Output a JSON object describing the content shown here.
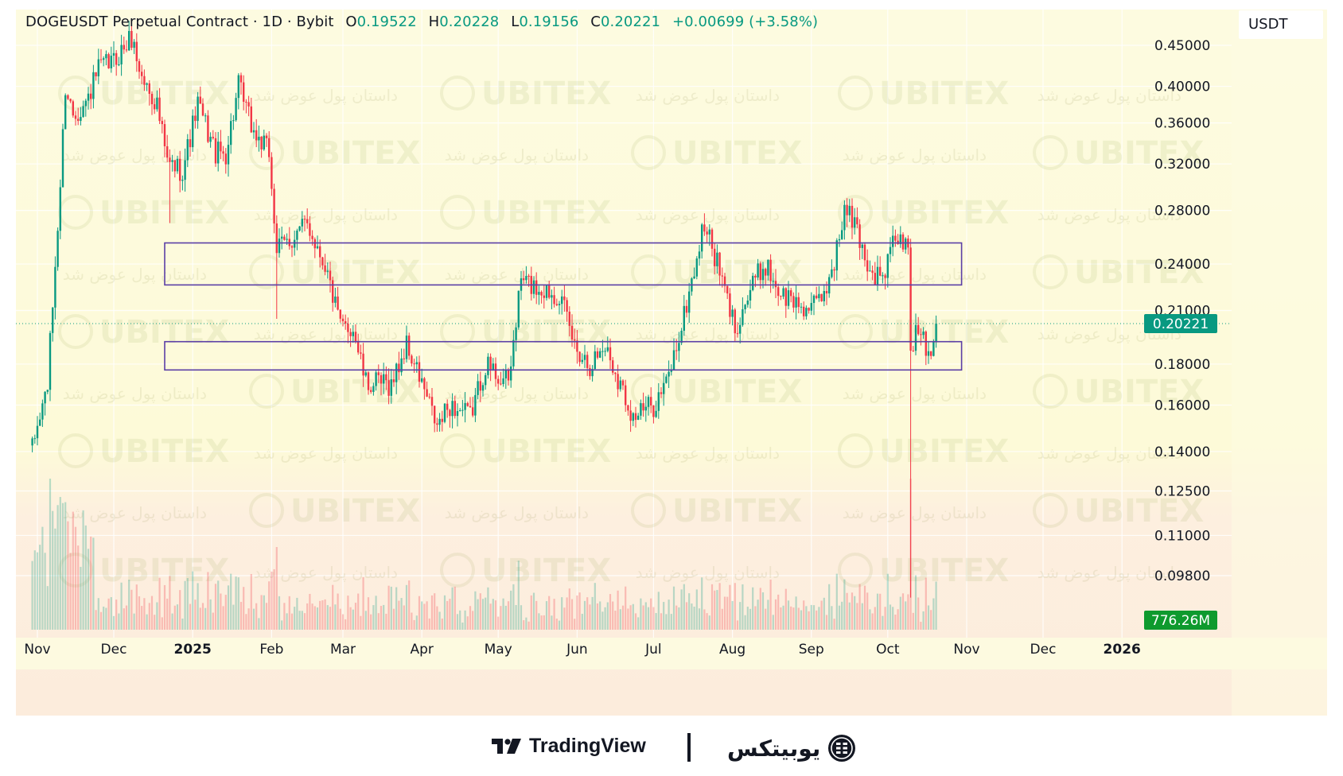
{
  "header": {
    "symbol": "DOGEUSDT Perpetual Contract · 1D · Bybit",
    "open_key": "O",
    "open": "0.19522",
    "high_key": "H",
    "high": "0.20228",
    "low_key": "L",
    "low": "0.19156",
    "close_key": "C",
    "close": "0.20221",
    "change": "+0.00699 (+3.58%)"
  },
  "axis": {
    "unit": "USDT"
  },
  "footer": {
    "tradingview": "TradingView",
    "ubitex": "یوبیتکس"
  },
  "watermark": {
    "latin": "UBITEX",
    "persian": "داستان پول عوض شد"
  },
  "colors": {
    "up": "#089981",
    "down": "#f23645",
    "zone": "#5b3fa6",
    "background": "#fdfbe0",
    "band_lower": "#fdeede"
  },
  "chart_data": {
    "type": "candlestick",
    "symbol": "DOGEUSDT",
    "interval": "1D",
    "exchange": "Bybit",
    "y_scale": "log",
    "y_ticks": [
      0.45,
      0.4,
      0.36,
      0.32,
      0.28,
      0.24,
      0.21,
      0.18,
      0.16,
      0.14,
      0.125,
      0.11,
      0.098
    ],
    "y_tick_labels": [
      "0.45000",
      "0.40000",
      "0.36000",
      "0.32000",
      "0.28000",
      "0.24000",
      "0.21000",
      "0.18000",
      "0.16000",
      "0.14000",
      "0.12500",
      "0.11000",
      "0.09800"
    ],
    "x_ticks": [
      "2024-11-01",
      "2024-12-01",
      "2025-01-01",
      "2025-02-01",
      "2025-03-01",
      "2025-04-01",
      "2025-05-01",
      "2025-06-01",
      "2025-07-01",
      "2025-08-01",
      "2025-09-01",
      "2025-10-01",
      "2025-11-01",
      "2025-12-01",
      "2026-01-01"
    ],
    "x_tick_labels": [
      "Nov",
      "Dec",
      "2025",
      "Feb",
      "Mar",
      "Apr",
      "May",
      "Jun",
      "Jul",
      "Aug",
      "Sep",
      "Oct",
      "Nov",
      "Dec",
      "2026"
    ],
    "last_price": 0.20221,
    "last_price_label": "0.20221",
    "volume_label": "776.26M",
    "zones": [
      {
        "from": "2024-12-21",
        "to": "2025-10-30",
        "high": 0.255,
        "low": 0.226
      },
      {
        "from": "2024-12-21",
        "to": "2025-10-30",
        "high": 0.192,
        "low": 0.177
      }
    ],
    "price_path": [
      [
        "2024-10-30",
        0.141
      ],
      [
        "2024-11-05",
        0.17
      ],
      [
        "2024-11-10",
        0.3
      ],
      [
        "2024-11-12",
        0.4
      ],
      [
        "2024-11-15",
        0.37
      ],
      [
        "2024-11-20",
        0.38
      ],
      [
        "2024-11-25",
        0.42
      ],
      [
        "2024-12-01",
        0.43
      ],
      [
        "2024-12-08",
        0.46
      ],
      [
        "2024-12-12",
        0.41
      ],
      [
        "2024-12-18",
        0.38
      ],
      [
        "2024-12-22",
        0.32
      ],
      [
        "2024-12-28",
        0.315
      ],
      [
        "2025-01-03",
        0.38
      ],
      [
        "2025-01-10",
        0.33
      ],
      [
        "2025-01-14",
        0.33
      ],
      [
        "2025-01-19",
        0.4
      ],
      [
        "2025-01-25",
        0.35
      ],
      [
        "2025-01-31",
        0.33
      ],
      [
        "2025-02-03",
        0.25
      ],
      [
        "2025-02-10",
        0.26
      ],
      [
        "2025-02-15",
        0.27
      ],
      [
        "2025-02-22",
        0.24
      ],
      [
        "2025-02-28",
        0.2
      ],
      [
        "2025-03-05",
        0.2
      ],
      [
        "2025-03-10",
        0.17
      ],
      [
        "2025-03-20",
        0.17
      ],
      [
        "2025-03-26",
        0.19
      ],
      [
        "2025-04-01",
        0.17
      ],
      [
        "2025-04-07",
        0.15
      ],
      [
        "2025-04-12",
        0.16
      ],
      [
        "2025-04-20",
        0.155
      ],
      [
        "2025-04-26",
        0.18
      ],
      [
        "2025-05-05",
        0.17
      ],
      [
        "2025-05-10",
        0.23
      ],
      [
        "2025-05-15",
        0.225
      ],
      [
        "2025-05-25",
        0.22
      ],
      [
        "2025-05-31",
        0.19
      ],
      [
        "2025-06-06",
        0.18
      ],
      [
        "2025-06-12",
        0.19
      ],
      [
        "2025-06-18",
        0.17
      ],
      [
        "2025-06-23",
        0.155
      ],
      [
        "2025-07-01",
        0.16
      ],
      [
        "2025-07-06",
        0.17
      ],
      [
        "2025-07-12",
        0.2
      ],
      [
        "2025-07-21",
        0.27
      ],
      [
        "2025-07-26",
        0.24
      ],
      [
        "2025-08-02",
        0.2
      ],
      [
        "2025-08-10",
        0.23
      ],
      [
        "2025-08-14",
        0.24
      ],
      [
        "2025-08-20",
        0.22
      ],
      [
        "2025-08-26",
        0.215
      ],
      [
        "2025-09-01",
        0.21
      ],
      [
        "2025-09-06",
        0.22
      ],
      [
        "2025-09-11",
        0.25
      ],
      [
        "2025-09-14",
        0.28
      ],
      [
        "2025-09-18",
        0.27
      ],
      [
        "2025-09-24",
        0.235
      ],
      [
        "2025-09-29",
        0.23
      ],
      [
        "2025-10-04",
        0.26
      ],
      [
        "2025-10-09",
        0.25
      ],
      [
        "2025-10-10",
        0.19
      ],
      [
        "2025-10-14",
        0.2
      ],
      [
        "2025-10-17",
        0.185
      ],
      [
        "2025-10-20",
        0.2022
      ]
    ],
    "notable_wicks": [
      {
        "date": "2025-10-10",
        "low": 0.092
      },
      {
        "date": "2025-02-03",
        "low": 0.205
      },
      {
        "date": "2024-12-23",
        "low": 0.27
      }
    ]
  }
}
